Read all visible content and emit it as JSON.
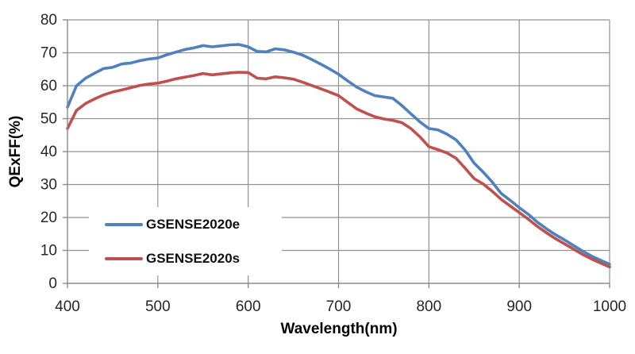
{
  "chart": {
    "y_axis_title": "QExFF(%)",
    "x_axis_title": "Wavelength(nm)"
  },
  "chart_data": {
    "type": "line",
    "title": "",
    "xlabel": "Wavelength(nm)",
    "ylabel": "QExFF(%)",
    "xlim": [
      400,
      1000
    ],
    "ylim": [
      0,
      80
    ],
    "x_ticks": [
      400,
      500,
      600,
      700,
      800,
      900,
      1000
    ],
    "y_ticks": [
      0,
      10,
      20,
      30,
      40,
      50,
      60,
      70,
      80
    ],
    "grid": true,
    "legend_position": "inside-bottom-left",
    "x": [
      400,
      410,
      420,
      430,
      440,
      450,
      460,
      470,
      480,
      490,
      500,
      510,
      520,
      530,
      540,
      550,
      560,
      570,
      580,
      590,
      600,
      610,
      620,
      630,
      640,
      650,
      660,
      670,
      680,
      690,
      700,
      710,
      720,
      730,
      740,
      750,
      760,
      770,
      780,
      790,
      800,
      810,
      820,
      830,
      840,
      850,
      860,
      870,
      880,
      890,
      900,
      910,
      920,
      930,
      940,
      950,
      960,
      970,
      980,
      990,
      1000
    ],
    "series": [
      {
        "name": "GSENSE2020e",
        "color": "#4F81BD",
        "values": [
          53.5,
          60,
          62.3,
          63.8,
          65.2,
          65.6,
          66.6,
          66.9,
          67.6,
          68.1,
          68.4,
          69.4,
          70.2,
          71,
          71.5,
          72.2,
          71.8,
          72.1,
          72.4,
          72.5,
          71.8,
          70.4,
          70.3,
          71.2,
          70.9,
          70.2,
          69.3,
          68,
          66.6,
          65.1,
          63.5,
          61.5,
          59.6,
          58.2,
          57,
          56.6,
          56.2,
          54,
          51.5,
          49,
          47,
          46.6,
          45.3,
          43.6,
          40.5,
          36.5,
          33.8,
          30.8,
          27.3,
          25.2,
          23,
          21,
          18.6,
          16.6,
          14.8,
          13.2,
          11.5,
          9.8,
          8.3,
          7,
          5.8
        ]
      },
      {
        "name": "GSENSE2020s",
        "color": "#C0504D",
        "values": [
          47,
          52.5,
          54.6,
          56,
          57.2,
          58.1,
          58.7,
          59.4,
          60.1,
          60.5,
          60.8,
          61.4,
          62.1,
          62.6,
          63.1,
          63.7,
          63.3,
          63.6,
          63.9,
          64.1,
          64,
          62.3,
          62.1,
          62.7,
          62.4,
          62,
          61.1,
          60.1,
          59.1,
          58.1,
          57,
          55,
          53,
          51.7,
          50.6,
          49.9,
          49.5,
          48.8,
          47,
          44.5,
          41.5,
          40.6,
          39.6,
          38,
          35,
          31.8,
          30.2,
          28,
          25.5,
          23.5,
          21.5,
          19.5,
          17.3,
          15.4,
          13.6,
          12,
          10.4,
          8.8,
          7.4,
          6.2,
          5
        ]
      }
    ],
    "style": {
      "grid_color": "#929292",
      "axis_color": "#8a8a8a",
      "tick_label_color": "#262626"
    }
  }
}
